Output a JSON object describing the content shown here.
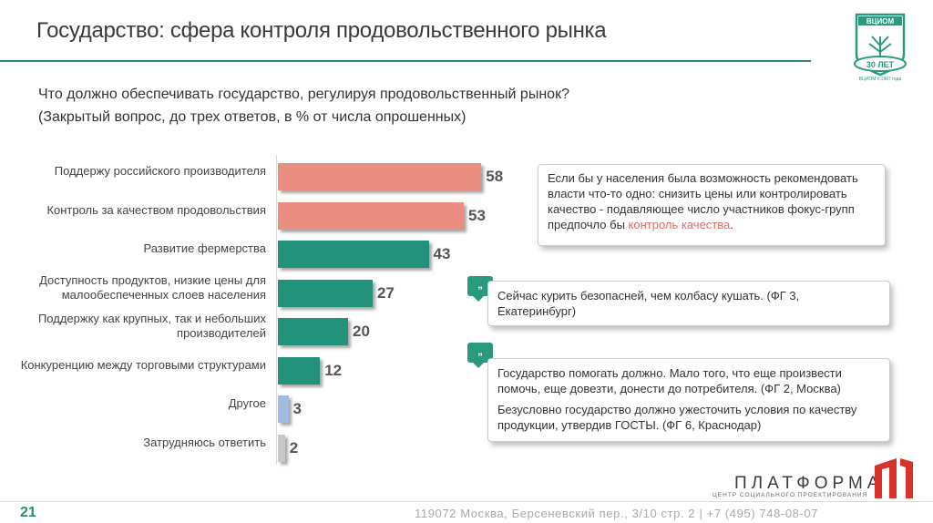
{
  "header": {
    "title": "Государство: сфера контроля продовольственного рынка"
  },
  "logo": {
    "org": "ВЦИОМ",
    "badge": "30 ЛЕТ",
    "since": "ВЦИОМ с 1987 года"
  },
  "question": {
    "text": "Что должно обеспечивать государство, регулируя продовольственный рынок?",
    "subtext": "(Закрытый вопрос, до трех ответов, в % от числа опрошенных)"
  },
  "chart_data": {
    "type": "bar",
    "orientation": "horizontal",
    "categories": [
      "Поддержу российского производителя",
      "Контроль за качеством продовольствия",
      "Развитие фермерства",
      "Доступность продуктов, низкие цены для малообеспеченных слоев населения",
      "Поддержку как крупных, так и небольших производителей",
      "Конкуренцию между торговыми структурами",
      "Другое",
      "Затрудняюсь ответить"
    ],
    "values": [
      58,
      53,
      43,
      27,
      20,
      12,
      3,
      2
    ],
    "labels": [
      "58",
      "53",
      "43",
      "27",
      "20",
      "12",
      "3",
      "2"
    ],
    "colors": [
      "#e98e81",
      "#e98e81",
      "#23927a",
      "#23927a",
      "#23927a",
      "#23927a",
      "#9fbde0",
      "#c8c8c8"
    ]
  },
  "callouts": {
    "box1": {
      "text": "Если бы у населения была возможность рекомендовать власти что-то одно: снизить цены или контролировать качество - подавляющее число участников фокус-групп предпочло бы ",
      "highlight": "контроль качества",
      "end": "."
    },
    "quote_badge": "„",
    "quote1": "Сейчас курить безопасней, чем колбасу кушать. (ФГ 3, Екатеринбург)",
    "quote2": "Государство помогать должно. Мало того, что еще произвести помочь, еще довезти, донести до потребителя. (ФГ 2, Москва)",
    "quote3": "Безусловно государство должно ужесточить условия по качеству продукции, утвердив  ГОСТЫ. (ФГ 6, Краснодар)"
  },
  "footer": {
    "page": "21",
    "address": "119072 Москва, Берсеневский пер., 3/10 стр. 2  |  +7 (495) 748-08-07",
    "brand": "ПЛАТФОРМА",
    "brand_sub": "ЦЕНТР СОЦИАЛЬНОГО ПРОЕКТИРОВАНИЯ"
  }
}
